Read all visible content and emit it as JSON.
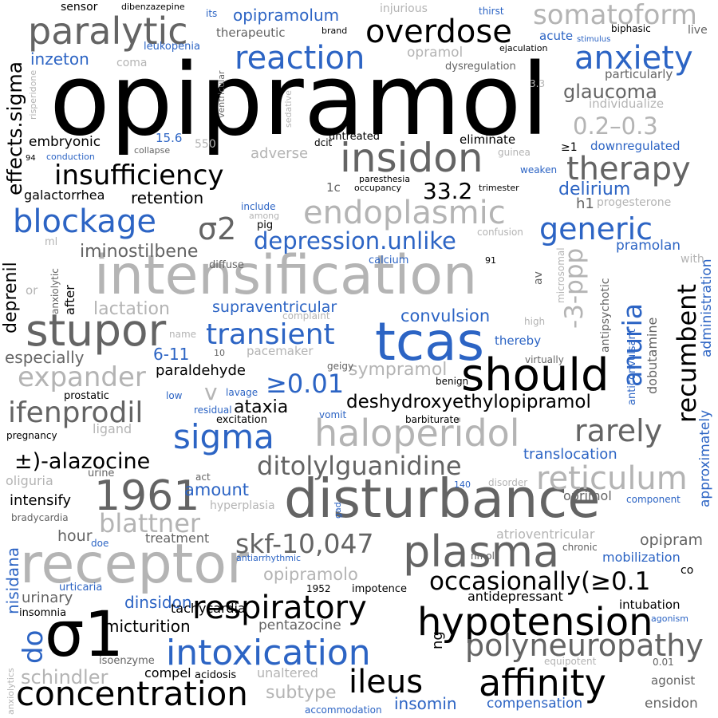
{
  "palette": {
    "black": "#000000",
    "dark_gray": "#646464",
    "light_gray": "#b4b4b4",
    "blue": "#2c64c4",
    "background": "#ffffff"
  },
  "words": [
    "opipramol",
    "intensification",
    "disturbance",
    "receptor",
    "σ1",
    "tcas",
    "should",
    "stupor",
    "hypotension",
    "affinity",
    "plasma",
    "insidon",
    "haloperidol",
    "concentration",
    "overdose",
    "paralytic",
    "somatoform",
    "reaction",
    "anxiety",
    "therapy",
    "insufficiency",
    "endoplasmic",
    "blockage",
    "σ2",
    "generic",
    "depression.unlike",
    "intoxication",
    "respiratory",
    "ileus",
    "polyneuropathy",
    "1961",
    "reticulum",
    "ditolylguanidine",
    "sigma",
    "transient",
    "expander",
    "ifenprodil",
    "rarely",
    "skf-10,047",
    "blattner",
    "effects.sigma",
    "occasionally(≥0.1",
    "recumbent",
    "anuria",
    "-3-ppp",
    "≥0.01",
    "±)-alazocine",
    "deshydroxyethylopipramol",
    "iminostilbene",
    "convulsion",
    "0.2–0.3",
    "33.2",
    "glaucoma",
    "delirium",
    "schindler",
    "opipramolo",
    "sympramol",
    "inzeton",
    "opipramolum",
    "deprenil",
    "retention",
    "embryonic",
    "galactorrhea",
    "lactation",
    "supraventricular",
    "dinsidon",
    "nisidana",
    "do",
    "ng",
    "micturition",
    "ataxia",
    "paraldehyde",
    "6-11",
    "especially",
    "translocation",
    "amount",
    "intensify",
    "hour",
    "treatment",
    "tachycardia",
    "urinary",
    "insomnia",
    "pentazocine",
    "impotence",
    "1952",
    "antidepressant",
    "intubation",
    "agonist",
    "ensidon",
    "insomin",
    "compensation",
    "accommodation",
    "subtype",
    "unaltered",
    "compel",
    "acidosis",
    "isoenzyme",
    "urticaria",
    "bradycardia",
    "pregnancy",
    "oliguria",
    "urine",
    "act",
    "hyperplasia",
    "oprimol",
    "opipram",
    "mobilization",
    "co",
    "chronic",
    "atrioventricular",
    "nmol",
    "disorder",
    "component",
    "administration",
    "approximately",
    "dobutamine",
    "antipsychotic",
    "anticonvulsant",
    "pramolan",
    "with",
    "microsomal",
    "av",
    "high",
    "virtually",
    "thereby",
    "benign",
    "barbiturate",
    "geigy",
    "pacemaker",
    "complaint",
    "name",
    "10",
    "prostatic",
    "residual",
    "low",
    "lavage",
    "vomit",
    "excitation",
    "ligand",
    "diffuse",
    "pig",
    "among",
    "include",
    "calcium",
    "91",
    "confusion",
    "h1",
    "progesterone",
    "downregulated",
    "≥1",
    "weaken",
    "eliminate",
    "guinea",
    "untreated",
    "dcit",
    "paresthesia",
    "occupancy",
    "1c",
    "trimester",
    "conduction",
    "94",
    "collapse",
    "550",
    "15.6",
    "adverse",
    "sedative",
    "coma",
    "leukopenia",
    "ventricular",
    "risperidone",
    "sensor",
    "dibenzazepine",
    "its",
    "injurious",
    "thirst",
    "brand",
    "therapeutic",
    "biphasic",
    "live",
    "stimulus",
    "opramol",
    "ejaculation",
    "dysregulation",
    "3.3",
    "particularly",
    "individualize",
    "acute",
    "anxiolytic",
    "anxiolytics",
    "or",
    "ml",
    "after",
    "gad",
    "140",
    "doe",
    "antiarrhythmic",
    "agonism",
    "equipotent",
    "0.01",
    "v"
  ]
}
